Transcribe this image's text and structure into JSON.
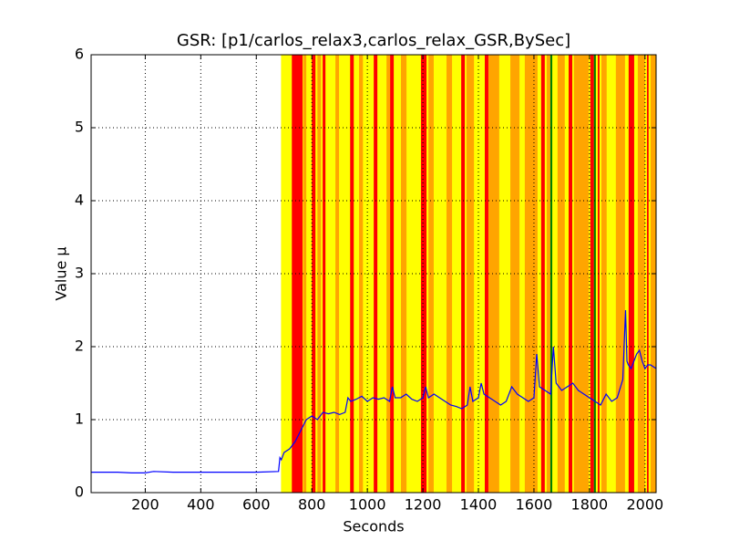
{
  "chart_data": {
    "type": "line",
    "title": "GSR: [p1/carlos_relax3,carlos_relax_GSR,BySec]",
    "x_label": "Seconds",
    "y_label": "Value µ",
    "xlim": [
      5,
      2040
    ],
    "ylim": [
      0,
      6
    ],
    "xticks": [
      200,
      400,
      600,
      800,
      1000,
      1200,
      1400,
      1600,
      1800,
      2000
    ],
    "yticks": [
      0,
      1,
      2,
      3,
      4,
      5,
      6
    ],
    "grid": true,
    "spans": [
      {
        "start": 689,
        "end": 2039,
        "color": "#ffff00"
      },
      {
        "start": 728,
        "end": 767,
        "color": "#ff0000"
      },
      {
        "start": 770,
        "end": 780,
        "color": "#ffa500"
      },
      {
        "start": 800,
        "end": 813,
        "color": "#ff0000"
      },
      {
        "start": 820,
        "end": 833,
        "color": "#ffa500"
      },
      {
        "start": 839,
        "end": 849,
        "color": "#ff0000"
      },
      {
        "start": 885,
        "end": 898,
        "color": "#ffa500"
      },
      {
        "start": 938,
        "end": 951,
        "color": "#ff0000"
      },
      {
        "start": 970,
        "end": 984,
        "color": "#ffa500"
      },
      {
        "start": 1023,
        "end": 1036,
        "color": "#ff0000"
      },
      {
        "start": 1069,
        "end": 1082,
        "color": "#ffa500"
      },
      {
        "start": 1082,
        "end": 1095,
        "color": "#ff0000"
      },
      {
        "start": 1121,
        "end": 1141,
        "color": "#ffa500"
      },
      {
        "start": 1193,
        "end": 1213,
        "color": "#ff0000"
      },
      {
        "start": 1220,
        "end": 1239,
        "color": "#ffa500"
      },
      {
        "start": 1285,
        "end": 1305,
        "color": "#ffa500"
      },
      {
        "start": 1338,
        "end": 1351,
        "color": "#ff0000"
      },
      {
        "start": 1357,
        "end": 1384,
        "color": "#ffa500"
      },
      {
        "start": 1423,
        "end": 1436,
        "color": "#ff0000"
      },
      {
        "start": 1436,
        "end": 1475,
        "color": "#ffa500"
      },
      {
        "start": 1515,
        "end": 1548,
        "color": "#ffa500"
      },
      {
        "start": 1567,
        "end": 1613,
        "color": "#ffa500"
      },
      {
        "start": 1626,
        "end": 1639,
        "color": "#ff0000"
      },
      {
        "start": 1646,
        "end": 1659,
        "color": "#ffa500"
      },
      {
        "start": 1659,
        "end": 1666,
        "color": "#008000"
      },
      {
        "start": 1685,
        "end": 1711,
        "color": "#ffa500"
      },
      {
        "start": 1725,
        "end": 1738,
        "color": "#ff0000"
      },
      {
        "start": 1744,
        "end": 1797,
        "color": "#ffa500"
      },
      {
        "start": 1803,
        "end": 1816,
        "color": "#ff0000"
      },
      {
        "start": 1816,
        "end": 1823,
        "color": "#008000"
      },
      {
        "start": 1830,
        "end": 1836,
        "color": "#ff0000"
      },
      {
        "start": 1843,
        "end": 1862,
        "color": "#ffa500"
      },
      {
        "start": 1895,
        "end": 1928,
        "color": "#ffa500"
      },
      {
        "start": 1941,
        "end": 1961,
        "color": "#ff0000"
      },
      {
        "start": 1974,
        "end": 2000,
        "color": "#ffa500"
      },
      {
        "start": 2007,
        "end": 2013,
        "color": "#ff0000"
      },
      {
        "start": 2020,
        "end": 2039,
        "color": "#ffa500"
      }
    ],
    "x": [
      5,
      100,
      150,
      200,
      230,
      300,
      400,
      500,
      600,
      680,
      685,
      690,
      700,
      720,
      740,
      760,
      780,
      800,
      820,
      840,
      860,
      880,
      900,
      920,
      930,
      940,
      960,
      980,
      1000,
      1020,
      1040,
      1060,
      1080,
      1090,
      1100,
      1120,
      1140,
      1160,
      1180,
      1200,
      1210,
      1220,
      1240,
      1260,
      1280,
      1300,
      1320,
      1340,
      1360,
      1370,
      1380,
      1400,
      1410,
      1420,
      1440,
      1460,
      1480,
      1500,
      1520,
      1540,
      1560,
      1580,
      1600,
      1610,
      1620,
      1640,
      1660,
      1670,
      1680,
      1700,
      1720,
      1740,
      1760,
      1780,
      1800,
      1820,
      1840,
      1860,
      1880,
      1900,
      1920,
      1930,
      1935,
      1940,
      1950,
      1960,
      1970,
      1980,
      1990,
      2000,
      2010,
      2020,
      2040
    ],
    "series": [
      {
        "color": "#0000ff",
        "values": [
          0.28,
          0.28,
          0.27,
          0.27,
          0.29,
          0.28,
          0.28,
          0.28,
          0.28,
          0.29,
          0.48,
          0.45,
          0.55,
          0.6,
          0.7,
          0.85,
          1.0,
          1.05,
          1.0,
          1.1,
          1.08,
          1.1,
          1.07,
          1.1,
          1.3,
          1.25,
          1.28,
          1.32,
          1.25,
          1.3,
          1.28,
          1.3,
          1.25,
          1.45,
          1.3,
          1.3,
          1.35,
          1.28,
          1.25,
          1.3,
          1.45,
          1.3,
          1.35,
          1.3,
          1.25,
          1.2,
          1.18,
          1.15,
          1.2,
          1.45,
          1.25,
          1.3,
          1.5,
          1.35,
          1.3,
          1.25,
          1.2,
          1.25,
          1.45,
          1.35,
          1.3,
          1.25,
          1.3,
          1.9,
          1.45,
          1.4,
          1.35,
          2.0,
          1.5,
          1.4,
          1.45,
          1.5,
          1.4,
          1.35,
          1.3,
          1.25,
          1.2,
          1.35,
          1.25,
          1.3,
          1.55,
          2.5,
          1.8,
          1.75,
          1.7,
          1.8,
          1.9,
          1.95,
          1.8,
          1.7,
          1.75,
          1.75,
          1.7
        ]
      }
    ]
  }
}
